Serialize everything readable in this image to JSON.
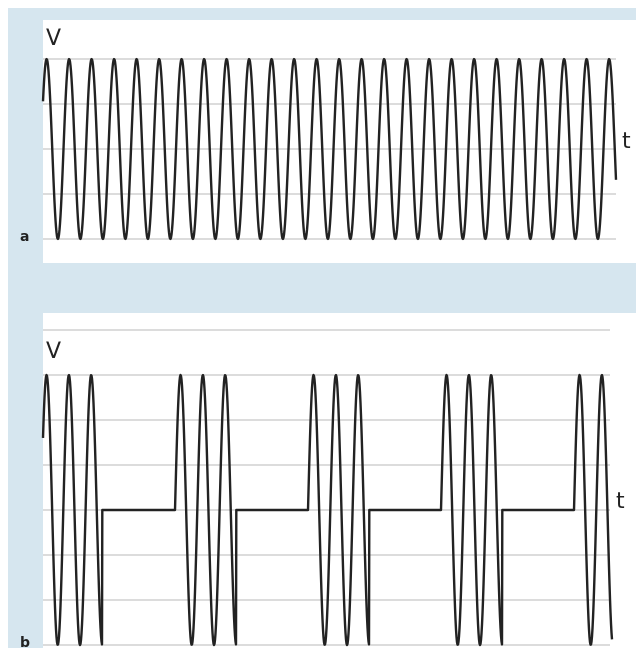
{
  "panels": [
    {
      "label": "a",
      "y_axis": "V",
      "x_axis": "t"
    },
    {
      "label": "b",
      "y_axis": "V",
      "x_axis": "t"
    }
  ]
}
